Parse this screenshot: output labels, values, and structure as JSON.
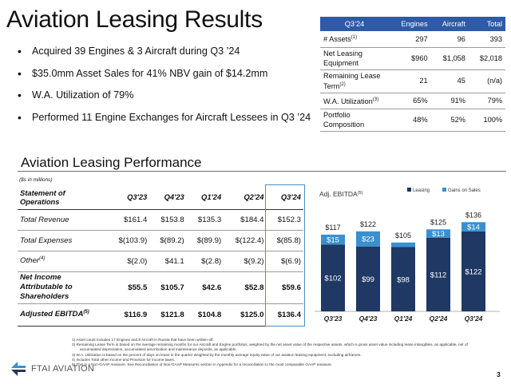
{
  "title": "Aviation Leasing Results",
  "bullets": [
    "Acquired 39 Engines & 3 Aircraft during Q3 ’24",
    "$35.0mm Asset Sales for 41% NBV gain of $14.2mm",
    "W.A. Utilization of 79%",
    "Performed 11 Engine Exchanges for Aircraft Lessees in Q3 ’24"
  ],
  "summary_table": {
    "headers": [
      "Q3’24",
      "Engines",
      "Aircraft",
      "Total"
    ],
    "rows": [
      {
        "label": "# Assets",
        "sup": "(1)",
        "values": [
          "297",
          "96",
          "393"
        ]
      },
      {
        "label": "Net Leasing Equipment",
        "sup": "",
        "values": [
          "$960",
          "$1,058",
          "$2,018"
        ]
      },
      {
        "label": "Remaining Lease Term",
        "sup": "(2)",
        "values": [
          "21",
          "45",
          "(n/a)"
        ]
      },
      {
        "label": "W.A. Utilization",
        "sup": "(3)",
        "values": [
          "65%",
          "91%",
          "79%"
        ]
      },
      {
        "label": "Portfolio Composition",
        "sup": "",
        "values": [
          "48%",
          "52%",
          "100%"
        ]
      }
    ]
  },
  "section_title": "Aviation Leasing Performance",
  "units_note": "($s in millions)",
  "ops_table": {
    "header_label": "Statement of Operations",
    "periods": [
      "Q3'23",
      "Q4'23",
      "Q1'24",
      "Q2'24",
      "Q3'24"
    ],
    "rows": [
      {
        "label": "Total Revenue",
        "sup": "",
        "values": [
          "$161.4",
          "$153.8",
          "$135.3",
          "$184.4",
          "$152.3"
        ]
      },
      {
        "label": "Total Expenses",
        "sup": "",
        "values": [
          "$(103.9)",
          "$(89.2)",
          "$(89.9)",
          "$(122.4)",
          "$(85.8)"
        ]
      },
      {
        "label": "Other",
        "sup": "(4)",
        "values": [
          "$(2.0)",
          "$41.1",
          "$(2.8)",
          "$(9.2)",
          "$(6.9)"
        ]
      },
      {
        "label": "Net Income Attributable to Shareholders",
        "sup": "",
        "values": [
          "$55.5",
          "$105.7",
          "$42.6",
          "$52.8",
          "$59.6"
        ]
      },
      {
        "label": "Adjusted EBITDA",
        "sup": "(5)",
        "values": [
          "$116.9",
          "$121.8",
          "$104.8",
          "$125.0",
          "$136.4"
        ]
      }
    ]
  },
  "chart_data": {
    "type": "bar",
    "stacked": true,
    "title": "Adj. EBITDA",
    "title_sup": "(5)",
    "categories": [
      "Q3'23",
      "Q4'23",
      "Q1'24",
      "Q2'24",
      "Q3'24"
    ],
    "series": [
      {
        "name": "Leasing",
        "color": "#1f3864",
        "values": [
          102,
          99,
          98,
          112,
          122
        ],
        "labels": [
          "$102",
          "$99",
          "$98",
          "$112",
          "$122"
        ]
      },
      {
        "name": "Gains on Sales",
        "color": "#3a8fcf",
        "values": [
          15,
          23,
          7,
          13,
          14
        ],
        "labels": [
          "$15",
          "$23",
          "",
          "$13",
          "$14"
        ]
      }
    ],
    "totals": [
      "$117",
      "$122",
      "$105",
      "$125",
      "$136"
    ],
    "legend": "top-right",
    "ylim": [
      0,
      150
    ]
  },
  "footnotes": [
    "1)  Asset count includes 17 Engines and 8 Aircraft in Russia that have been written-off.",
    "2)  Remaining Lease Term is based on the average remaining months for our Aircraft and Engine portfolios, weighted by the net asset value of the respective assets, which is gross asset value including lease intangibles, as applicable, net of accumulated depreciation, accumulated amortization and maintenance deposits, as applicable.",
    "3)  W.A. Utilization is based on the percent of days on lease in the quarter weighted by the monthly average equity value of our aviation leasing equipment, excluding airframes.",
    "4)  Includes Total other income and Provision for income taxes.",
    "5)  This is a Non-GAAP measure. See Reconciliation of Non-GAAP Measures section in Appendix for a reconciliation to the most comparable GAAP measure."
  ],
  "logo_text": "FTAI AVIATION",
  "page_number": "3",
  "colors": {
    "header_blue": "#2f5aa8",
    "leasing": "#1f3864",
    "gains": "#3a8fcf",
    "highlight": "#4a90c4"
  }
}
